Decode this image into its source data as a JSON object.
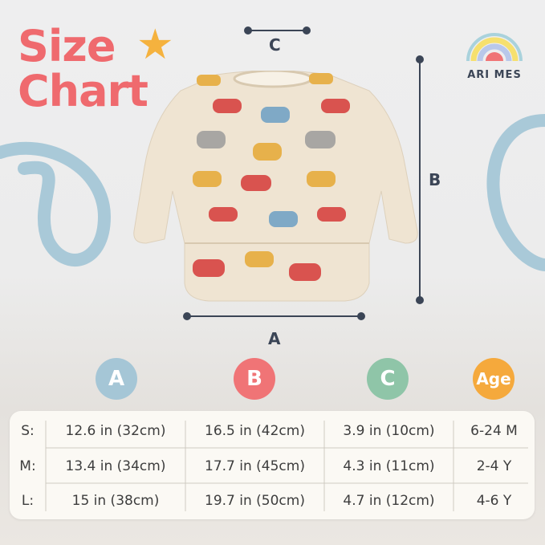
{
  "title": {
    "line1": "Size",
    "line2": "Chart"
  },
  "brand": "ARI MES",
  "dimensions": {
    "a_label": "A",
    "b_label": "B",
    "c_label": "C"
  },
  "columns": [
    {
      "label": "A",
      "color": "#a5c6d6"
    },
    {
      "label": "B",
      "color": "#f07476"
    },
    {
      "label": "C",
      "color": "#8fc5a8"
    },
    {
      "label": "Age",
      "color": "#f5a93c"
    }
  ],
  "rows": [
    {
      "size": "S:",
      "a": "12.6 in (32cm)",
      "b": "16.5 in (42cm)",
      "c": "3.9 in (10cm)",
      "age": "6-24 M"
    },
    {
      "size": "M:",
      "a": "13.4 in (34cm)",
      "b": "17.7 in (45cm)",
      "c": "4.3 in (11cm)",
      "age": "2-4 Y"
    },
    {
      "size": "L:",
      "a": "15 in (38cm)",
      "b": "19.7 in (50cm)",
      "c": "4.7 in (12cm)",
      "age": "4-6 Y"
    }
  ],
  "colors": {
    "accent": "#ef6a6e",
    "star": "#f5b23e",
    "line": "#3b4556",
    "swirl": "#a9c9d8"
  }
}
